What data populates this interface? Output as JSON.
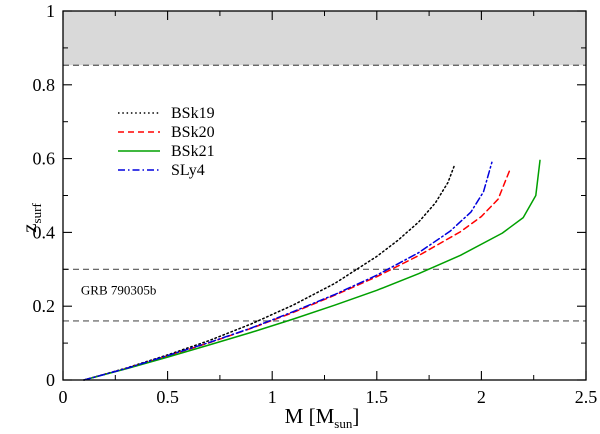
{
  "chart_data": {
    "type": "line",
    "xlabel_main": "M [M",
    "xlabel_sub": "sun",
    "xlabel_close": "]",
    "ylabel_main": "z",
    "ylabel_sub": "surf",
    "xlim": [
      0,
      2.5
    ],
    "ylim": [
      0,
      1
    ],
    "xticks": [
      0,
      0.5,
      1,
      1.5,
      2,
      2.5
    ],
    "xtick_labels": [
      "0",
      "0.5",
      "1",
      "1.5",
      "2",
      "2.5"
    ],
    "yticks": [
      0,
      0.2,
      0.4,
      0.6,
      0.8,
      1
    ],
    "ytick_labels": [
      "0",
      "0.2",
      "0.4",
      "0.6",
      "0.8",
      "1"
    ],
    "shaded_region": {
      "y_from": 0.853,
      "y_to": 1.0,
      "color": "#d9d9d9"
    },
    "hlines": [
      {
        "y": 0.853,
        "style": "dashed",
        "color": "#555555"
      },
      {
        "y": 0.3,
        "style": "dashed",
        "color": "#555555"
      },
      {
        "y": 0.16,
        "style": "dashed",
        "color": "#555555"
      }
    ],
    "annotations": [
      {
        "text": "GRB 790305b",
        "x": 0.1,
        "y": 0.245
      }
    ],
    "legend_position": "upper-left",
    "series": [
      {
        "name": "BSk19",
        "color": "#000000",
        "dash": "1.5 2.8",
        "x": [
          0.1,
          0.3,
          0.5,
          0.7,
          0.9,
          1.1,
          1.3,
          1.5,
          1.6,
          1.7,
          1.78,
          1.84,
          1.87
        ],
        "y": [
          0.0,
          0.032,
          0.068,
          0.107,
          0.152,
          0.203,
          0.262,
          0.335,
          0.378,
          0.428,
          0.48,
          0.535,
          0.58
        ]
      },
      {
        "name": "BSk20",
        "color": "#ff0000",
        "dash": "6 4",
        "x": [
          0.1,
          0.3,
          0.5,
          0.7,
          0.9,
          1.1,
          1.3,
          1.5,
          1.7,
          1.9,
          2.0,
          2.08,
          2.14
        ],
        "y": [
          0.0,
          0.031,
          0.065,
          0.101,
          0.14,
          0.183,
          0.23,
          0.28,
          0.337,
          0.402,
          0.443,
          0.49,
          0.575
        ]
      },
      {
        "name": "BSk21",
        "color": "#00a000",
        "dash": "",
        "x": [
          0.1,
          0.3,
          0.5,
          0.7,
          0.9,
          1.1,
          1.3,
          1.5,
          1.7,
          1.9,
          2.1,
          2.2,
          2.26,
          2.28
        ],
        "y": [
          0.0,
          0.03,
          0.062,
          0.095,
          0.129,
          0.165,
          0.203,
          0.243,
          0.288,
          0.338,
          0.398,
          0.44,
          0.5,
          0.595
        ]
      },
      {
        "name": "SLy4",
        "color": "#0000dd",
        "dash": "7 3 1.5 3",
        "x": [
          0.1,
          0.3,
          0.5,
          0.7,
          0.9,
          1.1,
          1.3,
          1.5,
          1.7,
          1.85,
          1.95,
          2.01,
          2.05
        ],
        "y": [
          0.0,
          0.031,
          0.066,
          0.102,
          0.141,
          0.185,
          0.232,
          0.284,
          0.345,
          0.403,
          0.455,
          0.51,
          0.59
        ]
      }
    ]
  }
}
